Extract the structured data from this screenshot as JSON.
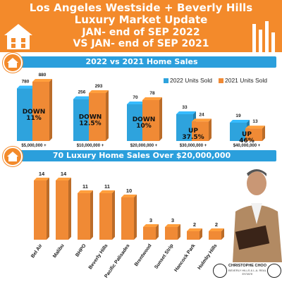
{
  "header": {
    "line1": "Los Angeles Westside + Beverly Hills",
    "line2": "Luxury Market Update",
    "line3": "JAN- end of SEP 2022",
    "line4": "VS JAN- end of SEP 2021",
    "icon": "house-icon",
    "decoration": "bar-stripes-icon"
  },
  "colors": {
    "orange": "#f38a2b",
    "blue": "#2b9fdc",
    "bar_2022": "#2ea3dd",
    "bar_2021": "#f08a35",
    "bar_luxury": "#f08a35"
  },
  "footer": {
    "name": "CHRISTOPHE CHOO",
    "sub": "BEVERLY HILLS & L.A. REAL ESTATE"
  },
  "chart_data": [
    {
      "type": "bar",
      "title": "2022 vs 2021 Home Sales",
      "categories": [
        "$5,000,000 +",
        "$10,000,000 +",
        "$20,000,000 +",
        "$30,000,000 +",
        "$40,000,000 +"
      ],
      "series": [
        {
          "name": "2022 Units Sold",
          "values": [
            780,
            256,
            70,
            33,
            19
          ]
        },
        {
          "name": "2021 Units Sold",
          "values": [
            880,
            293,
            78,
            24,
            13
          ]
        }
      ],
      "change_labels": [
        [
          "DOWN",
          "11%"
        ],
        [
          "DOWN",
          "12.5%"
        ],
        [
          "DOWN",
          "10%"
        ],
        [
          "UP",
          "37.5%"
        ],
        [
          "UP",
          "46%"
        ]
      ],
      "legend_position": "top-right",
      "grid": false
    },
    {
      "type": "bar",
      "title": "70 Luxury Home Sales Over $20,000,000",
      "categories": [
        "Bel Air",
        "Malibu",
        "BHPO",
        "Beverly Hills",
        "Pacific Palisades",
        "Brentwood",
        "Sunset Strip",
        "Hancock Park",
        "Holmby Hills"
      ],
      "values": [
        14,
        14,
        11,
        11,
        10,
        3,
        3,
        2,
        2
      ],
      "grid": false
    }
  ]
}
